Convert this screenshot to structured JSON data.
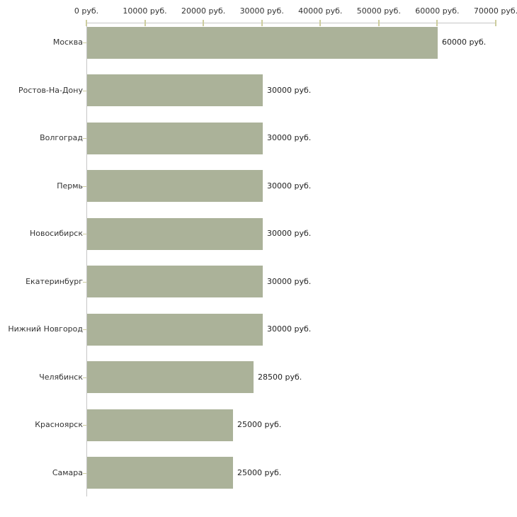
{
  "chart_data": {
    "type": "bar",
    "orientation": "horizontal",
    "title": "",
    "xlabel": "",
    "ylabel": "",
    "grid": false,
    "legend": false,
    "categories": [
      "Москва",
      "Ростов-На-Дону",
      "Волгоград",
      "Пермь",
      "Новосибирск",
      "Екатеринбург",
      "Нижний Новгород",
      "Челябинск",
      "Красноярск",
      "Самара"
    ],
    "values": [
      60000,
      30000,
      30000,
      30000,
      30000,
      30000,
      30000,
      28500,
      25000,
      25000
    ],
    "value_labels": [
      "60000 руб.",
      "30000 руб.",
      "30000 руб.",
      "30000 руб.",
      "30000 руб.",
      "30000 руб.",
      "30000 руб.",
      "28500 руб.",
      "25000 руб.",
      "25000 руб."
    ],
    "x_axis": {
      "position": "top",
      "min": 0,
      "max": 70000,
      "tick_values": [
        0,
        10000,
        20000,
        30000,
        40000,
        50000,
        60000,
        70000
      ],
      "tick_labels": [
        "0 руб.",
        "10000 руб.",
        "20000 руб.",
        "30000 руб.",
        "40000 руб.",
        "50000 руб.",
        "60000 руб.",
        "70000 руб."
      ]
    },
    "colors": {
      "bar": "#abb299",
      "axis_line": "#c6c6c6",
      "tick_mark": "#cdcd9e",
      "text": "#333333",
      "background": "#ffffff"
    }
  }
}
